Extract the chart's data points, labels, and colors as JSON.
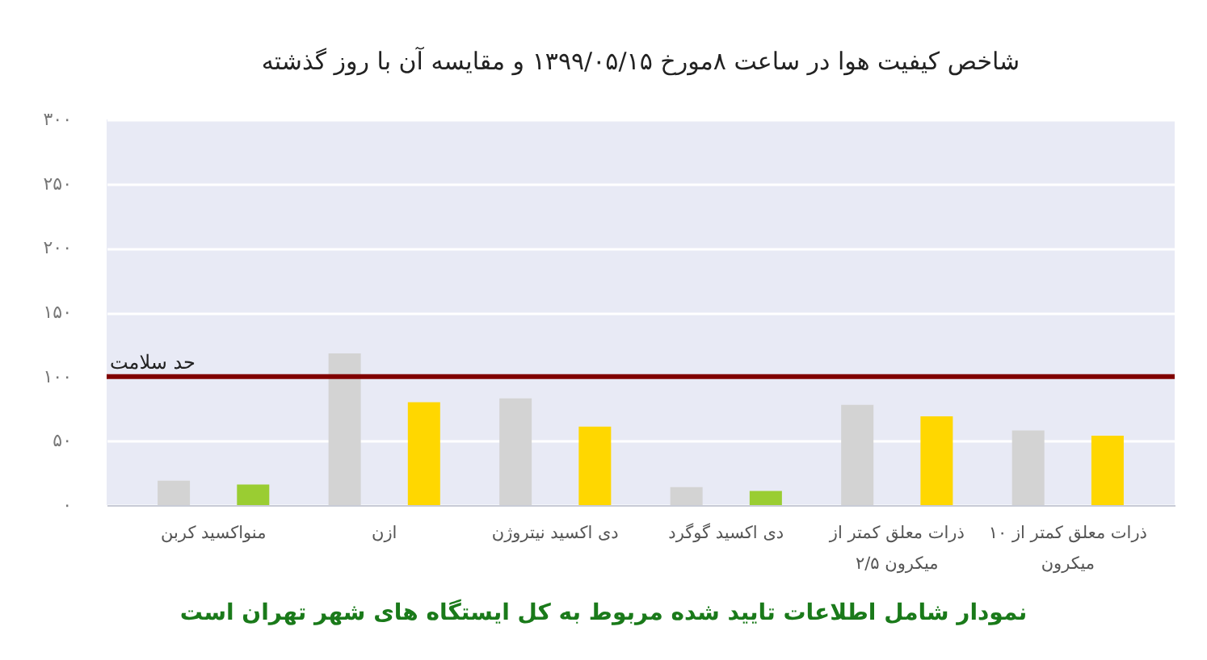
{
  "chart_data": {
    "type": "bar",
    "title": "شاخص کیفیت هوا در ساعت ۸مورخ ۱۳۹۹/۰۵/۱۵ و مقایسه آن با روز گذشته",
    "categories": [
      "منواکسید کربن",
      "ازن",
      "دی اکسید نیتروژن",
      "دی اکسید گوگرد",
      "ذرات معلق کمتر از ۲/۵ میکرون",
      "ذرات معلق کمتر از ۱۰ میکرون"
    ],
    "series": [
      {
        "color": "#d3d3d3",
        "values": [
          19,
          118,
          83,
          14,
          78,
          58
        ]
      },
      {
        "colors": [
          "#9acd32",
          "#ffd700",
          "#ffd700",
          "#9acd32",
          "#ffd700",
          "#ffd700"
        ],
        "values": [
          16,
          80,
          61,
          11,
          69,
          54
        ]
      }
    ],
    "ylim": [
      0,
      300
    ],
    "yticks": [
      {
        "value": 0,
        "label": "۰"
      },
      {
        "value": 50,
        "label": "۵۰"
      },
      {
        "value": 100,
        "label": "۱۰۰"
      },
      {
        "value": 150,
        "label": "۱۵۰"
      },
      {
        "value": 200,
        "label": "۲۰۰"
      },
      {
        "value": 250,
        "label": "۲۵۰"
      },
      {
        "value": 300,
        "label": "۳۰۰"
      }
    ],
    "grid": "y",
    "ref_lines": [
      {
        "axis": "y",
        "value": 100,
        "label": "حد سلامت",
        "color": "#800000"
      }
    ],
    "annotations": [
      "نمودار شامل اطلاعات تایید شده مربوط به کل ایستگاه های شهر تهران است"
    ]
  }
}
